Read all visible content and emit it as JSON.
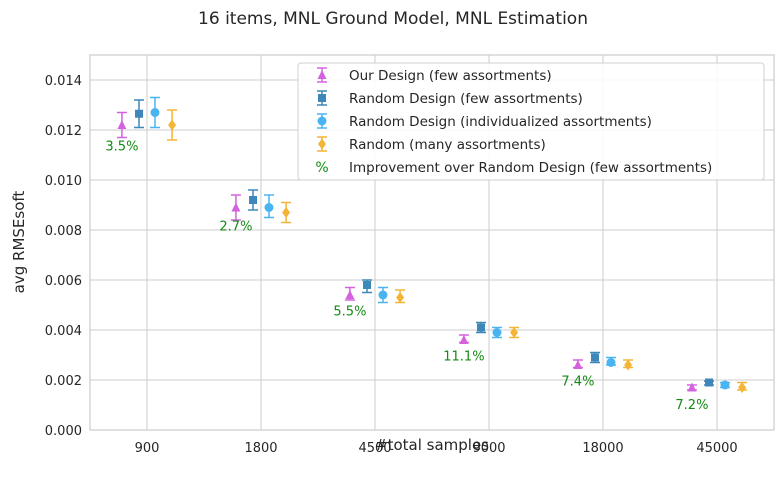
{
  "chart_data": {
    "type": "scatter",
    "title": "16 items, MNL Ground Model, MNL Estimation",
    "xlabel": "#total samples",
    "ylabel": "avg RMSEsoft",
    "categories": [
      "900",
      "1800",
      "4500",
      "9000",
      "18000",
      "45000"
    ],
    "ylim": [
      0,
      0.015
    ],
    "yticks": [
      "0.000",
      "0.002",
      "0.004",
      "0.006",
      "0.008",
      "0.010",
      "0.012",
      "0.014"
    ],
    "grid": true,
    "legend_position": "top-right",
    "series": [
      {
        "name": "Our Design (few assortments)",
        "marker": "triangle",
        "color": "#d462e0",
        "values": [
          0.0122,
          0.0089,
          0.0054,
          0.0036,
          0.0026,
          0.0017
        ],
        "err_low": [
          0.0117,
          0.0084,
          0.0052,
          0.0035,
          0.0025,
          0.0016
        ],
        "err_high": [
          0.0127,
          0.0094,
          0.0057,
          0.0038,
          0.0028,
          0.0018
        ]
      },
      {
        "name": "Random Design (few assortments)",
        "marker": "square",
        "color": "#3e87b8",
        "values": [
          0.01265,
          0.0092,
          0.0058,
          0.0041,
          0.0029,
          0.0019
        ],
        "err_low": [
          0.0121,
          0.0088,
          0.0055,
          0.0039,
          0.0027,
          0.0018
        ],
        "err_high": [
          0.0132,
          0.0096,
          0.006,
          0.0043,
          0.0031,
          0.00195
        ]
      },
      {
        "name": "Random Design (individualized assortments)",
        "marker": "circle",
        "color": "#4ab4f0",
        "values": [
          0.0127,
          0.0089,
          0.0054,
          0.0039,
          0.0027,
          0.0018
        ],
        "err_low": [
          0.0121,
          0.0085,
          0.0051,
          0.0037,
          0.0026,
          0.0017
        ],
        "err_high": [
          0.0133,
          0.0094,
          0.0057,
          0.0041,
          0.0029,
          0.0019
        ]
      },
      {
        "name": "Random (many assortments)",
        "marker": "diamond",
        "color": "#f4b438",
        "values": [
          0.0122,
          0.0087,
          0.0053,
          0.0039,
          0.0026,
          0.0017
        ],
        "err_low": [
          0.0116,
          0.0083,
          0.0051,
          0.0037,
          0.0025,
          0.0016
        ],
        "err_high": [
          0.0128,
          0.0091,
          0.0056,
          0.0041,
          0.0028,
          0.0019
        ]
      }
    ],
    "improvement_legend": "Improvement over Random Design (few assortments)",
    "improvement_symbol": "%",
    "improvement_color": "#138a13",
    "improvement_labels": [
      "3.5%",
      "2.7%",
      "5.5%",
      "11.1%",
      "7.4%",
      "7.2%"
    ],
    "improvement_y": [
      0.01135,
      0.00815,
      0.00475,
      0.00295,
      0.00195,
      0.001
    ]
  }
}
